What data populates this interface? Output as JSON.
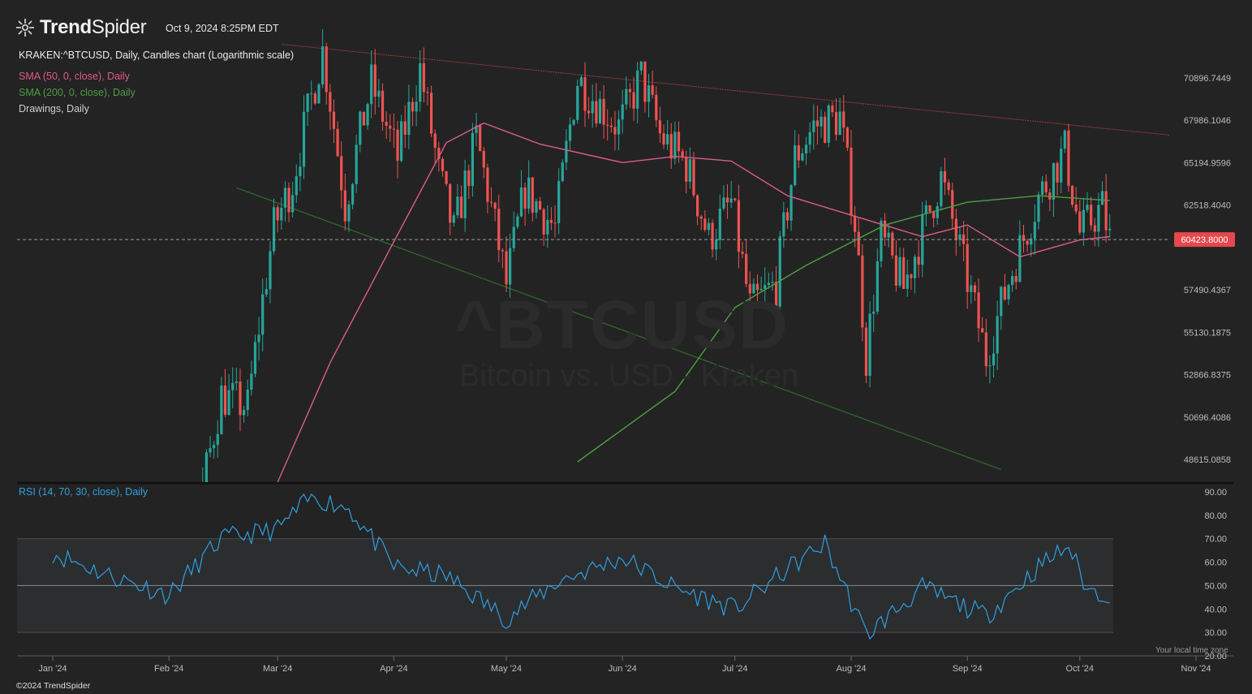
{
  "header": {
    "brand_bold": "Trend",
    "brand_light": "Spider",
    "timestamp": "Oct 9, 2024 8:25PM EDT",
    "symbol_line": "KRAKEN:^BTCUSD, Daily, Candles chart (Logarithmic scale)"
  },
  "watermark": {
    "symbol": "^BTCUSD",
    "description": "Bitcoin vs. USD - Kraken"
  },
  "legend": {
    "sma50": {
      "label": "SMA (50, 0, close), Daily",
      "color": "#e05c85"
    },
    "sma200": {
      "label": "SMA (200, 0, close), Daily",
      "color": "#4e9f43"
    },
    "drawings": {
      "label": "Drawings, Daily",
      "color": "#cfcfcf"
    },
    "rsi": {
      "label": "RSI (14, 70, 30, close), Daily",
      "color": "#2f9fe0"
    }
  },
  "colors": {
    "background": "#232323",
    "up_candle": "#26a69a",
    "down_candle": "#ef5350",
    "last_price_badge": "#e5484d",
    "upper_trendline": "#a33a3a",
    "lower_trendline": "#2f6e2a"
  },
  "footer": {
    "copyright": "©2024 TrendSpider",
    "local_tz": "Your local time zone"
  },
  "chart_data": [
    {
      "type": "candlestick",
      "title": "KRAKEN:^BTCUSD, Daily, Candles chart (Logarithmic scale)",
      "log_scale": true,
      "x_tick_labels": [
        "Jan '24",
        "Feb '24",
        "Mar '24",
        "Apr '24",
        "May '24",
        "Jun '24",
        "Jul '24",
        "Aug '24",
        "Sep '24",
        "Oct '24",
        "Nov '24"
      ],
      "y_tick_labels": [
        "70896.7449",
        "67986.1046",
        "65194.9596",
        "62518.4040",
        "57490.4367",
        "55130.1875",
        "52866.8375",
        "50696.4086",
        "48615.0858"
      ],
      "y_ticks": [
        70896.7449,
        67986.1046,
        65194.9596,
        62518.404,
        57490.4367,
        55130.1875,
        52866.8375,
        50696.4086,
        48615.0858
      ],
      "last_price": 60423.8,
      "last_price_label": "60423.8000",
      "monthly_closes": [
        {
          "date": "2024-01-31",
          "close": 42580
        },
        {
          "date": "2024-02-29",
          "close": 61160
        },
        {
          "date": "2024-03-31",
          "close": 71300
        },
        {
          "date": "2024-04-30",
          "close": 60600
        },
        {
          "date": "2024-05-31",
          "close": 67500
        },
        {
          "date": "2024-06-30",
          "close": 62700
        },
        {
          "date": "2024-07-31",
          "close": 64600
        },
        {
          "date": "2024-08-31",
          "close": 58900
        },
        {
          "date": "2024-09-30",
          "close": 63300
        },
        {
          "date": "2024-10-09",
          "close": 60423.8
        }
      ],
      "series": [
        {
          "name": "SMA (50, 0, close), Daily",
          "values": [
            {
              "date": "2024-03-01",
              "value": 46000
            },
            {
              "date": "2024-03-15",
              "value": 53500
            },
            {
              "date": "2024-04-01",
              "value": 60300
            },
            {
              "date": "2024-04-15",
              "value": 66500
            },
            {
              "date": "2024-04-25",
              "value": 67800
            },
            {
              "date": "2024-05-10",
              "value": 66400
            },
            {
              "date": "2024-06-01",
              "value": 65200
            },
            {
              "date": "2024-06-15",
              "value": 65600
            },
            {
              "date": "2024-06-30",
              "value": 65300
            },
            {
              "date": "2024-07-15",
              "value": 63100
            },
            {
              "date": "2024-08-01",
              "value": 61900
            },
            {
              "date": "2024-08-20",
              "value": 60600
            },
            {
              "date": "2024-09-01",
              "value": 61300
            },
            {
              "date": "2024-09-15",
              "value": 59400
            },
            {
              "date": "2024-10-01",
              "value": 60400
            },
            {
              "date": "2024-10-09",
              "value": 60600
            }
          ]
        },
        {
          "name": "SMA (200, 0, close), Daily",
          "values": [
            {
              "date": "2024-05-20",
              "value": 48500
            },
            {
              "date": "2024-06-15",
              "value": 52000
            },
            {
              "date": "2024-07-01",
              "value": 56500
            },
            {
              "date": "2024-07-20",
              "value": 58900
            },
            {
              "date": "2024-08-10",
              "value": 61300
            },
            {
              "date": "2024-09-01",
              "value": 62700
            },
            {
              "date": "2024-09-20",
              "value": 63100
            },
            {
              "date": "2024-10-09",
              "value": 62800
            }
          ]
        }
      ]
    },
    {
      "type": "line",
      "title": "RSI (14, 70, 30, close), Daily",
      "y_tick_labels": [
        "90.00",
        "80.00",
        "70.00",
        "60.00",
        "50.00",
        "40.00",
        "30.00",
        "20.00"
      ],
      "ylim": [
        20,
        90
      ],
      "bands": [
        30,
        50,
        70
      ],
      "x": [
        "2024-01-01",
        "2024-01-15",
        "2024-02-01",
        "2024-02-15",
        "2024-03-01",
        "2024-03-10",
        "2024-03-20",
        "2024-04-01",
        "2024-04-15",
        "2024-05-01",
        "2024-05-15",
        "2024-06-01",
        "2024-06-15",
        "2024-07-01",
        "2024-07-15",
        "2024-07-25",
        "2024-08-05",
        "2024-08-20",
        "2024-09-06",
        "2024-09-20",
        "2024-09-28",
        "2024-10-03",
        "2024-10-09"
      ],
      "values": [
        64,
        55,
        46,
        70,
        74,
        88,
        83,
        58,
        54,
        36,
        52,
        62,
        49,
        40,
        57,
        68,
        29,
        49,
        37,
        58,
        67,
        48,
        46
      ]
    }
  ]
}
